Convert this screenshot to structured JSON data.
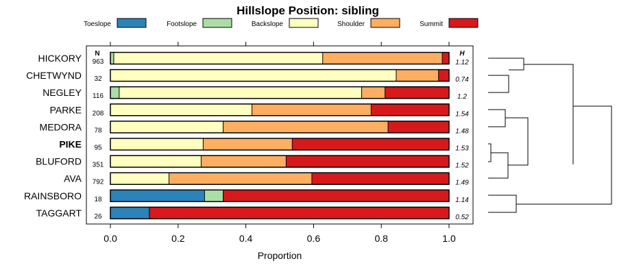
{
  "chart_data": {
    "type": "bar",
    "orientation": "horizontal",
    "stacked": true,
    "title": "Hillslope Position: sibling",
    "xlabel": "Proportion",
    "xlim": [
      0,
      1
    ],
    "xticks": [
      "0.0",
      "0.2",
      "0.4",
      "0.6",
      "0.8",
      "1.0"
    ],
    "legend_position": "top",
    "n_header": "N",
    "h_header": "H",
    "legend": [
      {
        "name": "Toeslope",
        "color": "#2b83ba"
      },
      {
        "name": "Footslope",
        "color": "#abdda4"
      },
      {
        "name": "Backslope",
        "color": "#ffffbf"
      },
      {
        "name": "Shoulder",
        "color": "#fdae61"
      },
      {
        "name": "Summit",
        "color": "#d7191c"
      }
    ],
    "categories": [
      "HICKORY",
      "CHETWYND",
      "NEGLEY",
      "PARKE",
      "MEDORA",
      "PIKE",
      "BLUFORD",
      "AVA",
      "RAINSBORO",
      "TAGGART"
    ],
    "highlight": "PIKE",
    "n": [
      "963",
      "32",
      "116",
      "208",
      "78",
      "95",
      "351",
      "792",
      "18",
      "26"
    ],
    "h": [
      "1.12",
      "0.74",
      "1.2",
      "1.54",
      "1.48",
      "1.53",
      "1.52",
      "1.49",
      "1.14",
      "0.52"
    ],
    "series": [
      {
        "name": "Toeslope",
        "values": [
          0.0,
          0.0,
          0.0,
          0.0,
          0.0,
          0.0,
          0.0,
          0.0,
          0.278,
          0.115
        ]
      },
      {
        "name": "Footslope",
        "values": [
          0.01,
          0.0,
          0.026,
          0.0,
          0.0,
          0.0,
          0.0,
          0.0,
          0.055,
          0.0
        ]
      },
      {
        "name": "Backslope",
        "values": [
          0.617,
          0.844,
          0.716,
          0.418,
          0.333,
          0.274,
          0.268,
          0.173,
          0.0,
          0.0
        ]
      },
      {
        "name": "Shoulder",
        "values": [
          0.353,
          0.125,
          0.069,
          0.352,
          0.487,
          0.263,
          0.251,
          0.422,
          0.0,
          0.0
        ]
      },
      {
        "name": "Summit",
        "values": [
          0.02,
          0.031,
          0.189,
          0.23,
          0.18,
          0.463,
          0.481,
          0.405,
          0.667,
          0.885
        ]
      }
    ]
  }
}
